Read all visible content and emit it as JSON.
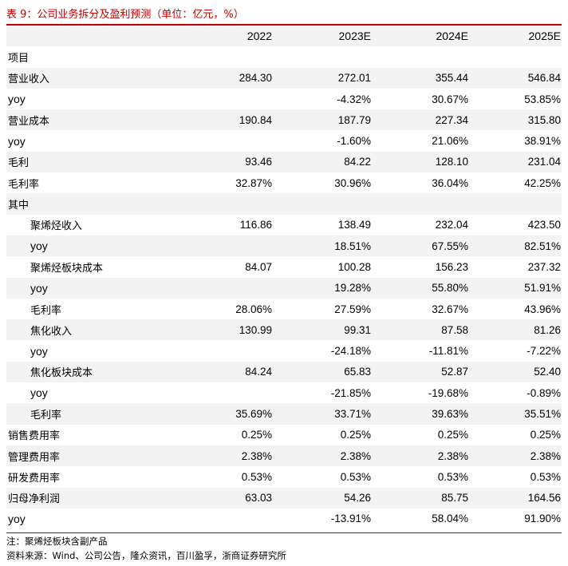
{
  "title": "表 9：公司业务拆分及盈利预测（单位：亿元，%）",
  "columns": [
    "",
    "2022",
    "2023E",
    "2024E",
    "2025E"
  ],
  "rows": [
    {
      "label": "项目",
      "values": [
        "",
        "",
        "",
        ""
      ]
    },
    {
      "label": "营业收入",
      "values": [
        "284.30",
        "272.01",
        "355.44",
        "546.84"
      ]
    },
    {
      "label": "yoy",
      "values": [
        "",
        "-4.32%",
        "30.67%",
        "53.85%"
      ]
    },
    {
      "label": "营业成本",
      "values": [
        "190.84",
        "187.79",
        "227.34",
        "315.80"
      ]
    },
    {
      "label": "yoy",
      "values": [
        "",
        "-1.60%",
        "21.06%",
        "38.91%"
      ]
    },
    {
      "label": "毛利",
      "values": [
        "93.46",
        "84.22",
        "128.10",
        "231.04"
      ]
    },
    {
      "label": "毛利率",
      "values": [
        "32.87%",
        "30.96%",
        "36.04%",
        "42.25%"
      ]
    },
    {
      "label": "其中",
      "values": [
        "",
        "",
        "",
        ""
      ]
    },
    {
      "label": "聚烯烃收入",
      "values": [
        "116.86",
        "138.49",
        "232.04",
        "423.50"
      ]
    },
    {
      "label": "yoy",
      "values": [
        "",
        "18.51%",
        "67.55%",
        "82.51%"
      ]
    },
    {
      "label": "聚烯烃板块成本",
      "values": [
        "84.07",
        "100.28",
        "156.23",
        "237.32"
      ]
    },
    {
      "label": "yoy",
      "values": [
        "",
        "19.28%",
        "55.80%",
        "51.91%"
      ]
    },
    {
      "label": "毛利率",
      "values": [
        "28.06%",
        "27.59%",
        "32.67%",
        "43.96%"
      ]
    },
    {
      "label": "焦化收入",
      "values": [
        "130.99",
        "99.31",
        "87.58",
        "81.26"
      ]
    },
    {
      "label": "yoy",
      "values": [
        "",
        "-24.18%",
        "-11.81%",
        "-7.22%"
      ]
    },
    {
      "label": "焦化板块成本",
      "values": [
        "84.24",
        "65.83",
        "52.87",
        "52.40"
      ]
    },
    {
      "label": "yoy",
      "values": [
        "",
        "-21.85%",
        "-19.68%",
        "-0.89%"
      ]
    },
    {
      "label": "毛利率",
      "values": [
        "35.69%",
        "33.71%",
        "39.63%",
        "35.51%"
      ]
    },
    {
      "label": "销售费用率",
      "values": [
        "0.25%",
        "0.25%",
        "0.25%",
        "0.25%"
      ]
    },
    {
      "label": "管理费用率",
      "values": [
        "2.38%",
        "2.38%",
        "2.38%",
        "2.38%"
      ]
    },
    {
      "label": "研发费用率",
      "values": [
        "0.53%",
        "0.53%",
        "0.53%",
        "0.53%"
      ]
    },
    {
      "label": "归母净利润",
      "values": [
        "63.03",
        "54.26",
        "85.75",
        "164.56"
      ]
    },
    {
      "label": "yoy",
      "values": [
        "",
        "-13.91%",
        "58.04%",
        "91.90%"
      ]
    }
  ],
  "note": "注：聚烯烃板块含副产品",
  "source": "资料来源：Wind、公司公告，隆众资讯，百川盈孚，浙商证券研究所",
  "colors": {
    "accent": "#c00000",
    "stripe": "#f3f3f3"
  }
}
